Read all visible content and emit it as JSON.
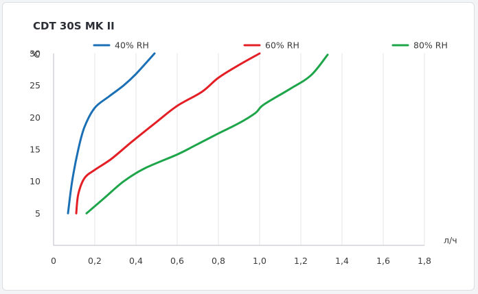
{
  "chart_data": {
    "type": "line",
    "title": "CDT 30S MK II",
    "xlabel": "л/ч",
    "ylabel": "°C",
    "xlim": [
      0,
      1.8
    ],
    "ylim": [
      0,
      30
    ],
    "x_ticks": [
      "0",
      "0,2",
      "0,4",
      "0,6",
      "0,8",
      "1,0",
      "1,2",
      "1,4",
      "1,6",
      "1,8"
    ],
    "y_ticks": [
      "5",
      "10",
      "15",
      "20",
      "25",
      "30"
    ],
    "grid": "vertical",
    "legend_position": "top",
    "series": [
      {
        "name": "40% RH",
        "color": "#1a6fb5",
        "points": [
          [
            0.07,
            5
          ],
          [
            0.09,
            10
          ],
          [
            0.12,
            15
          ],
          [
            0.15,
            18.5
          ],
          [
            0.2,
            21.5
          ],
          [
            0.27,
            23.3
          ],
          [
            0.34,
            25
          ],
          [
            0.4,
            26.8
          ],
          [
            0.49,
            30
          ]
        ]
      },
      {
        "name": "60% RH",
        "color": "#e31e24",
        "points": [
          [
            0.11,
            5
          ],
          [
            0.12,
            8
          ],
          [
            0.15,
            10.5
          ],
          [
            0.2,
            11.8
          ],
          [
            0.28,
            13.5
          ],
          [
            0.38,
            16.2
          ],
          [
            0.5,
            19.3
          ],
          [
            0.6,
            21.8
          ],
          [
            0.72,
            24
          ],
          [
            0.8,
            26.2
          ],
          [
            0.9,
            28.2
          ],
          [
            1.0,
            30
          ]
        ]
      },
      {
        "name": "80% RH",
        "color": "#1ea54a",
        "points": [
          [
            0.16,
            5
          ],
          [
            0.25,
            7.5
          ],
          [
            0.34,
            10
          ],
          [
            0.44,
            12
          ],
          [
            0.6,
            14.2
          ],
          [
            0.68,
            15.5
          ],
          [
            0.8,
            17.5
          ],
          [
            0.9,
            19.1
          ],
          [
            0.98,
            20.7
          ],
          [
            1.02,
            22
          ],
          [
            1.15,
            24.5
          ],
          [
            1.25,
            26.6
          ],
          [
            1.33,
            29.8
          ]
        ]
      }
    ]
  }
}
